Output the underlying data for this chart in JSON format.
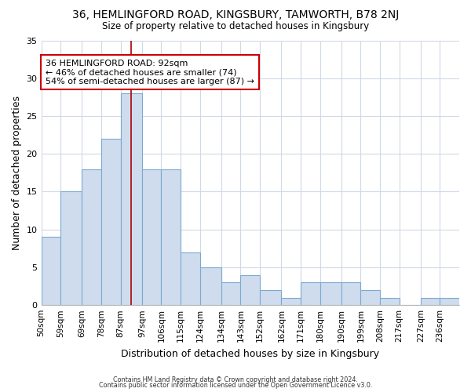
{
  "title": "36, HEMLINGFORD ROAD, KINGSBURY, TAMWORTH, B78 2NJ",
  "subtitle": "Size of property relative to detached houses in Kingsbury",
  "xlabel": "Distribution of detached houses by size in Kingsbury",
  "ylabel": "Number of detached properties",
  "bin_labels": [
    "50sqm",
    "59sqm",
    "69sqm",
    "78sqm",
    "87sqm",
    "97sqm",
    "106sqm",
    "115sqm",
    "124sqm",
    "134sqm",
    "143sqm",
    "152sqm",
    "162sqm",
    "171sqm",
    "180sqm",
    "190sqm",
    "199sqm",
    "208sqm",
    "217sqm",
    "227sqm",
    "236sqm"
  ],
  "bin_edges": [
    50,
    59,
    69,
    78,
    87,
    97,
    106,
    115,
    124,
    134,
    143,
    152,
    162,
    171,
    180,
    190,
    199,
    208,
    217,
    227,
    236,
    245
  ],
  "bar_heights": [
    9,
    15,
    18,
    22,
    28,
    18,
    18,
    7,
    5,
    3,
    4,
    2,
    1,
    3,
    3,
    3,
    2,
    1,
    0,
    1,
    1
  ],
  "bar_color": "#cfdcee",
  "bar_edge_color": "#7aaad0",
  "property_value": 92,
  "vline_color": "#aa0000",
  "annotation_text": "36 HEMLINGFORD ROAD: 92sqm\n← 46% of detached houses are smaller (74)\n54% of semi-detached houses are larger (87) →",
  "annotation_box_color": "white",
  "annotation_box_edge_color": "#cc0000",
  "ylim": [
    0,
    35
  ],
  "yticks": [
    0,
    5,
    10,
    15,
    20,
    25,
    30,
    35
  ],
  "background_color": "#ffffff",
  "grid_color": "#d0d8e8",
  "footer_line1": "Contains HM Land Registry data © Crown copyright and database right 2024.",
  "footer_line2": "Contains public sector information licensed under the Open Government Licence v3.0."
}
